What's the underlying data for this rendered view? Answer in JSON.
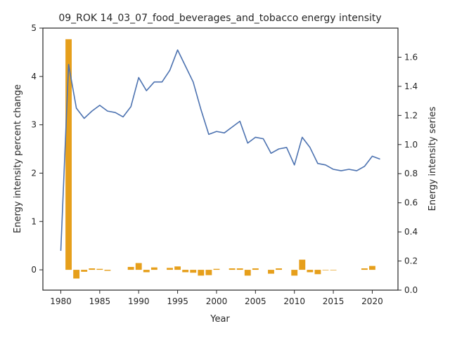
{
  "chart_data": {
    "type": "bar+line",
    "title": "09_ROK 14_03_07_food_beverages_and_tobacco energy intensity",
    "xlabel": "Year",
    "ylabel_left": "Energy intensity percent change",
    "ylabel_right": "Energy intensity series",
    "x_ticks": [
      1980,
      1985,
      1990,
      1995,
      2000,
      2005,
      2010,
      2015,
      2020
    ],
    "y_left_ticks": [
      0,
      1,
      2,
      3,
      4,
      5
    ],
    "y_right_ticks": [
      "0.0",
      "0.2",
      "0.4",
      "0.6",
      "0.8",
      "1.0",
      "1.2",
      "1.4",
      "1.6"
    ],
    "ylim_left": [
      -0.42,
      5.0
    ],
    "ylim_right": [
      0.0,
      1.8
    ],
    "xlim": [
      1977.7,
      2023.3
    ],
    "bar_color": "#e69f1b",
    "line_color": "#4c72b0",
    "series": [
      {
        "axis": "left",
        "kind": "bar",
        "x": [
          1980,
          1981,
          1982,
          1983,
          1984,
          1985,
          1986,
          1987,
          1988,
          1989,
          1990,
          1991,
          1992,
          1993,
          1994,
          1995,
          1996,
          1997,
          1998,
          1999,
          2000,
          2001,
          2002,
          2003,
          2004,
          2005,
          2006,
          2007,
          2008,
          2009,
          2010,
          2011,
          2012,
          2013,
          2014,
          2015,
          2016,
          2017,
          2018,
          2019,
          2020,
          2021
        ],
        "values": [
          0,
          4.77,
          -0.18,
          -0.04,
          0.03,
          0.02,
          -0.02,
          0,
          0,
          0.06,
          0.14,
          -0.05,
          0.05,
          0,
          0.04,
          0.07,
          -0.05,
          -0.06,
          -0.12,
          -0.11,
          0.02,
          0,
          0.03,
          0.03,
          -0.12,
          0.03,
          0,
          -0.08,
          0.03,
          0,
          -0.12,
          0.21,
          -0.05,
          -0.09,
          -0.01,
          -0.01,
          0,
          0,
          0,
          0.03,
          0.08,
          0
        ]
      },
      {
        "axis": "right",
        "kind": "line",
        "x": [
          1980,
          1981,
          1982,
          1983,
          1984,
          1985,
          1986,
          1987,
          1988,
          1989,
          1990,
          1991,
          1992,
          1993,
          1994,
          1995,
          1996,
          1997,
          1998,
          1999,
          2000,
          2001,
          2002,
          2003,
          2004,
          2005,
          2006,
          2007,
          2008,
          2009,
          2010,
          2011,
          2012,
          2013,
          2014,
          2015,
          2016,
          2017,
          2018,
          2019,
          2020,
          2021
        ],
        "values": [
          0.27,
          1.55,
          1.25,
          1.18,
          1.23,
          1.27,
          1.23,
          1.22,
          1.19,
          1.26,
          1.46,
          1.37,
          1.43,
          1.43,
          1.51,
          1.65,
          1.54,
          1.43,
          1.24,
          1.07,
          1.09,
          1.08,
          1.12,
          1.16,
          1.01,
          1.05,
          1.04,
          0.94,
          0.97,
          0.98,
          0.86,
          1.05,
          0.98,
          0.87,
          0.86,
          0.83,
          0.82,
          0.83,
          0.82,
          0.85,
          0.92,
          0.9
        ]
      }
    ]
  }
}
